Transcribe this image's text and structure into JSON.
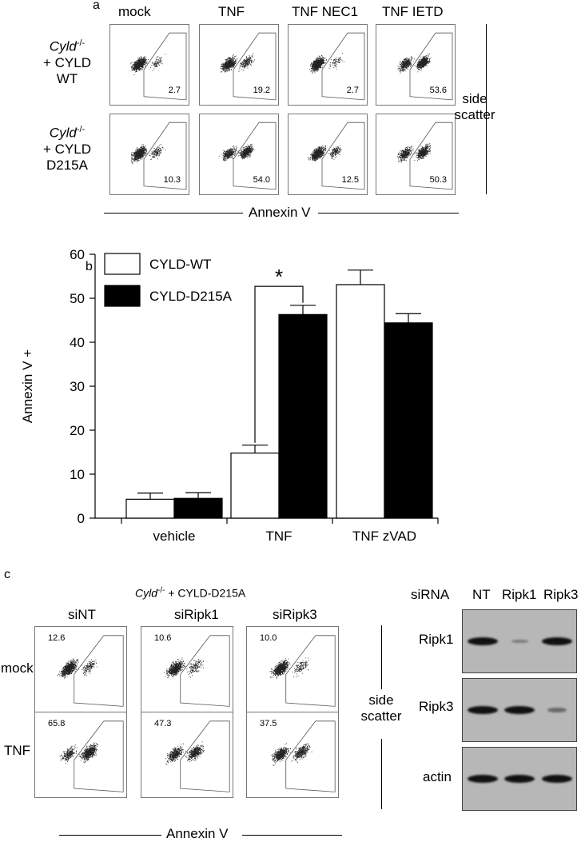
{
  "panel_a": {
    "label": "a",
    "columns": [
      "mock",
      "TNF",
      "TNF NEC1",
      "TNF IETD"
    ],
    "rows": [
      {
        "label_italic": "Cyld",
        "label_sup": "-/-",
        "label_line2": "+ CYLD",
        "label_line3": "WT",
        "percentages": [
          "2.7",
          "19.2",
          "2.7",
          "53.6"
        ]
      },
      {
        "label_italic": "Cyld",
        "label_sup": "-/-",
        "label_line2": "+ CYLD",
        "label_line3": "D215A",
        "percentages": [
          "10.3",
          "54.0",
          "12.5",
          "50.3"
        ]
      }
    ],
    "side_scatter_line1": "side",
    "side_scatter_line2": "scatter",
    "xaxis": "Annexin V"
  },
  "panel_b": {
    "label": "b",
    "chart_data": {
      "type": "bar",
      "categories": [
        "vehicle",
        "TNF",
        "TNF zVAD"
      ],
      "series": [
        {
          "name": "CYLD-WT",
          "color": "#ffffff",
          "values": [
            4.3,
            14.8,
            53.1
          ],
          "errors": [
            1.4,
            1.8,
            3.3
          ]
        },
        {
          "name": "CYLD-D215A",
          "color": "#000000",
          "values": [
            4.5,
            46.3,
            44.4
          ],
          "errors": [
            1.3,
            2.1,
            2.1
          ]
        }
      ],
      "ylabel": "Annexin V +",
      "ylim": [
        0,
        60
      ],
      "yticks": [
        "0",
        "10",
        "20",
        "30",
        "40",
        "50",
        "60"
      ],
      "significance": "*",
      "legend": "top-left"
    }
  },
  "panel_c": {
    "label": "c",
    "title_italic": "Cyld",
    "title_sup": "-/-",
    "title_rest": " + CYLD-D215A",
    "columns": [
      "siNT",
      "siRipk1",
      "siRipk3"
    ],
    "rows": [
      {
        "label": "mock",
        "percentages": [
          "12.6",
          "10.6",
          "10.0"
        ]
      },
      {
        "label": "TNF",
        "percentages": [
          "65.8",
          "47.3",
          "37.5"
        ]
      }
    ],
    "side_scatter_line1": "side",
    "side_scatter_line2": "scatter",
    "xaxis": "Annexin V",
    "blot": {
      "header": "siRNA",
      "lanes": [
        "NT",
        "Ripk1",
        "Ripk3"
      ],
      "rows": [
        {
          "label": "Ripk1",
          "intensity": [
            1.0,
            0.15,
            1.0
          ]
        },
        {
          "label": "Ripk3",
          "intensity": [
            1.0,
            1.0,
            0.3
          ]
        },
        {
          "label": "actin",
          "intensity": [
            1.0,
            1.0,
            1.0
          ]
        }
      ]
    }
  }
}
